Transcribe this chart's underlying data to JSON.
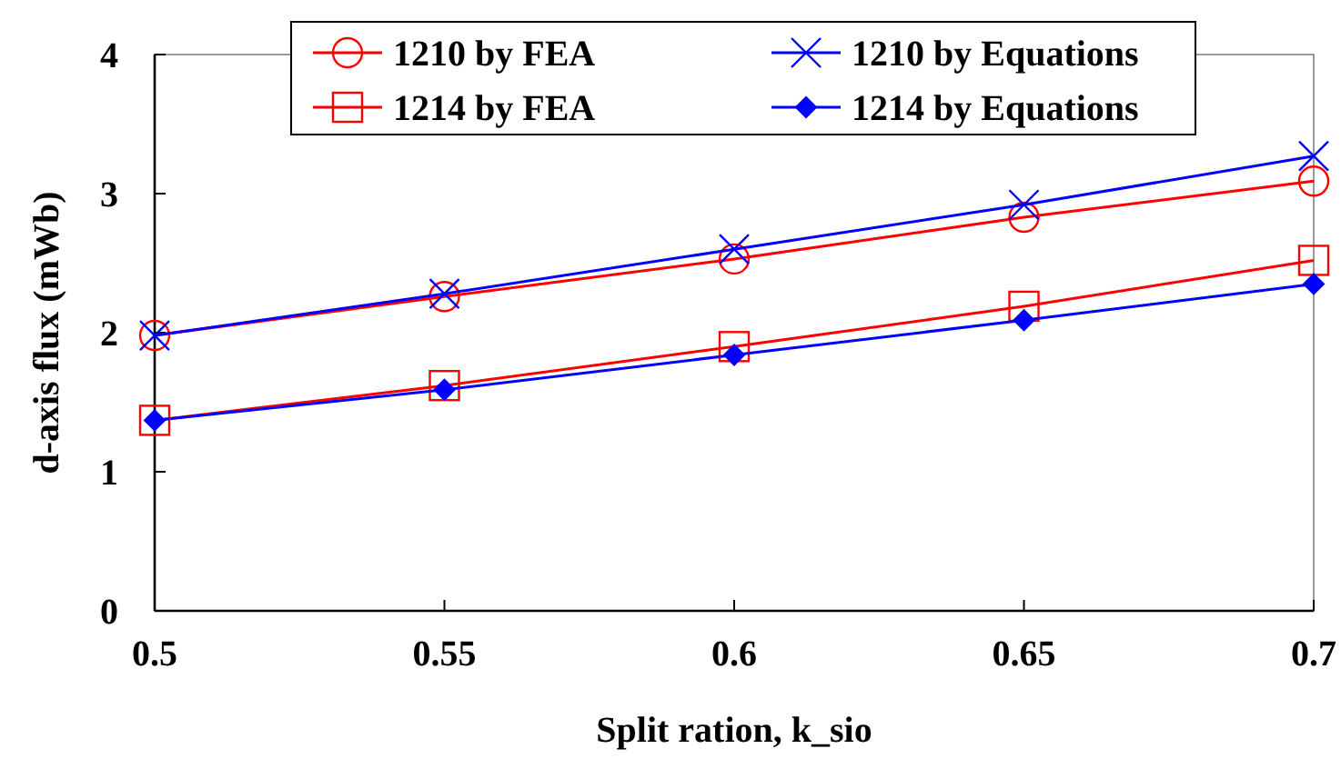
{
  "chart_data": {
    "type": "line",
    "xlabel": "Split ration, k_sio",
    "ylabel": "d-axis flux (mWb)",
    "x": [
      0.5,
      0.55,
      0.6,
      0.65,
      0.7
    ],
    "xlim": [
      0.5,
      0.7
    ],
    "xticks": [
      0.5,
      0.55,
      0.6,
      0.65,
      0.7
    ],
    "ylim": [
      0,
      4
    ],
    "yticks": [
      0,
      1,
      2,
      3,
      4
    ],
    "grid": false,
    "legend": "top",
    "line_style": "solid",
    "series": [
      {
        "name": "1210 by FEA",
        "color": "#ff0000",
        "marker": "circle",
        "values": [
          1.98,
          2.26,
          2.53,
          2.83,
          3.09
        ]
      },
      {
        "name": "1210 by Equations",
        "color": "#0000ff",
        "marker": "cross",
        "values": [
          1.98,
          2.28,
          2.6,
          2.92,
          3.27
        ]
      },
      {
        "name": "1214 by FEA",
        "color": "#ff0000",
        "marker": "square",
        "values": [
          1.37,
          1.62,
          1.9,
          2.19,
          2.52
        ]
      },
      {
        "name": "1214 by Equations",
        "color": "#0000ff",
        "marker": "diamond",
        "values": [
          1.37,
          1.59,
          1.84,
          2.09,
          2.35
        ]
      }
    ]
  }
}
